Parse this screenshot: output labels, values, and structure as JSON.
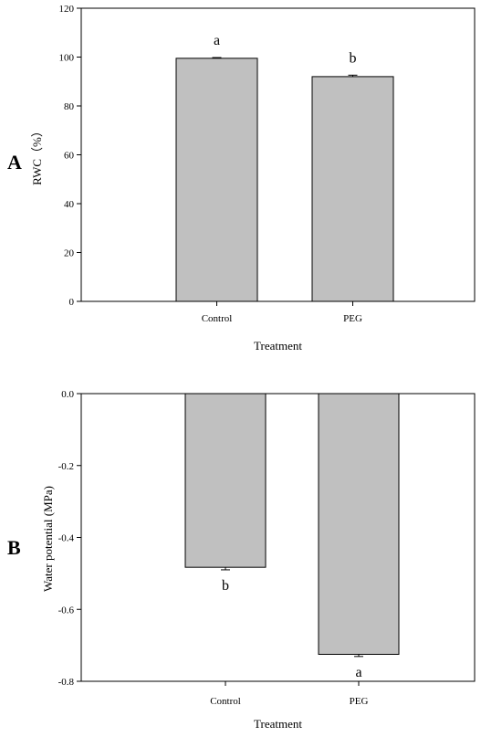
{
  "chart_data": [
    {
      "type": "bar",
      "panel_label": "A",
      "categories": [
        "Control",
        "PEG"
      ],
      "values": [
        99.5,
        92.0
      ],
      "errors": [
        0.3,
        0.6
      ],
      "significance": [
        "a",
        "b"
      ],
      "xlabel": "Treatment",
      "ylabel": "RWC（%）",
      "ylim": [
        0,
        120
      ],
      "yticks": [
        0,
        20,
        40,
        60,
        80,
        100,
        120
      ],
      "ytick_labels": [
        "0",
        "20",
        "40",
        "60",
        "80",
        "100",
        "120"
      ],
      "bar_color": "#c0c0c0",
      "grid": false
    },
    {
      "type": "bar",
      "panel_label": "B",
      "categories": [
        "Control",
        "PEG"
      ],
      "values": [
        -0.483,
        -0.725
      ],
      "errors": [
        0.007,
        0.006
      ],
      "significance": [
        "b",
        "a"
      ],
      "xlabel": "Treatment",
      "ylabel": "Water potential (MPa)",
      "ylim": [
        -0.8,
        0.0
      ],
      "yticks": [
        -0.8,
        -0.6,
        -0.4,
        -0.2,
        0.0
      ],
      "ytick_labels": [
        "-0.8",
        "-0.6",
        "-0.4",
        "-0.2",
        "0.0"
      ],
      "bar_color": "#c0c0c0",
      "grid": false
    }
  ]
}
